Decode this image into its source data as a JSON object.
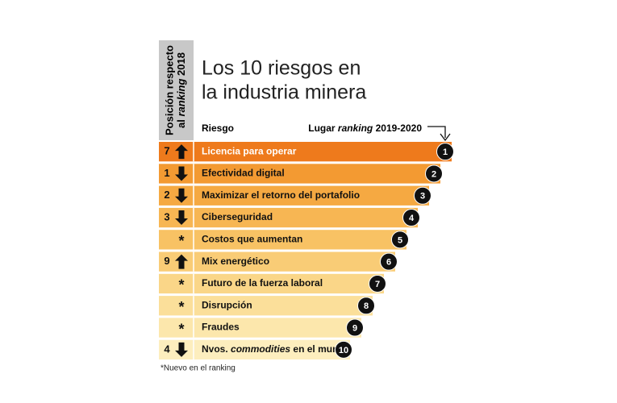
{
  "side_label": {
    "line1": "Posición respecto",
    "line2_before": "al",
    "line2_italic": "ranking",
    "line2_after": "2018"
  },
  "title": [
    "Los 10 riesgos en",
    "la industria minera"
  ],
  "column_risk": "Riesgo",
  "column_rank": {
    "before": "Lugar",
    "italic": "ranking",
    "after": "2019-2020"
  },
  "rows": [
    {
      "previous": "7",
      "trend": "up",
      "risk": "Licencia para operar",
      "rank": "1",
      "color": "#ee7a1c",
      "text_color": "#ffffff"
    },
    {
      "previous": "1",
      "trend": "down",
      "risk": "Efectividad digital",
      "rank": "2",
      "color": "#f39a32",
      "text_color": "#111111"
    },
    {
      "previous": "2",
      "trend": "down",
      "risk": "Maximizar el retorno del portafolio",
      "rank": "3",
      "color": "#f5a942",
      "text_color": "#111111"
    },
    {
      "previous": "3",
      "trend": "down",
      "risk": "Ciberseguridad",
      "rank": "4",
      "color": "#f7b653",
      "text_color": "#111111"
    },
    {
      "previous": "*",
      "risk": "Costos que aumentan",
      "rank": "5",
      "color": "#f8c264",
      "text_color": "#111111"
    },
    {
      "previous": "9",
      "trend": "up",
      "risk": "Mix energético",
      "rank": "6",
      "color": "#f9cc76",
      "text_color": "#111111"
    },
    {
      "previous": "*",
      "risk": "Futuro de la fuerza laboral",
      "rank": "7",
      "color": "#fad688",
      "text_color": "#111111"
    },
    {
      "previous": "*",
      "risk": "Disrupción",
      "rank": "8",
      "color": "#fbdf9a",
      "text_color": "#111111"
    },
    {
      "previous": "*",
      "risk": "Fraudes",
      "rank": "9",
      "color": "#fce7ac",
      "text_color": "#111111"
    },
    {
      "previous": "4",
      "trend": "down",
      "risk": {
        "before": "Nvos.",
        "italic": "commodities",
        "after": "en el mundo"
      },
      "rank": "10",
      "color": "#fdeebe",
      "text_color": "#111111"
    }
  ],
  "footnote": "*Nuevo en el ranking"
}
